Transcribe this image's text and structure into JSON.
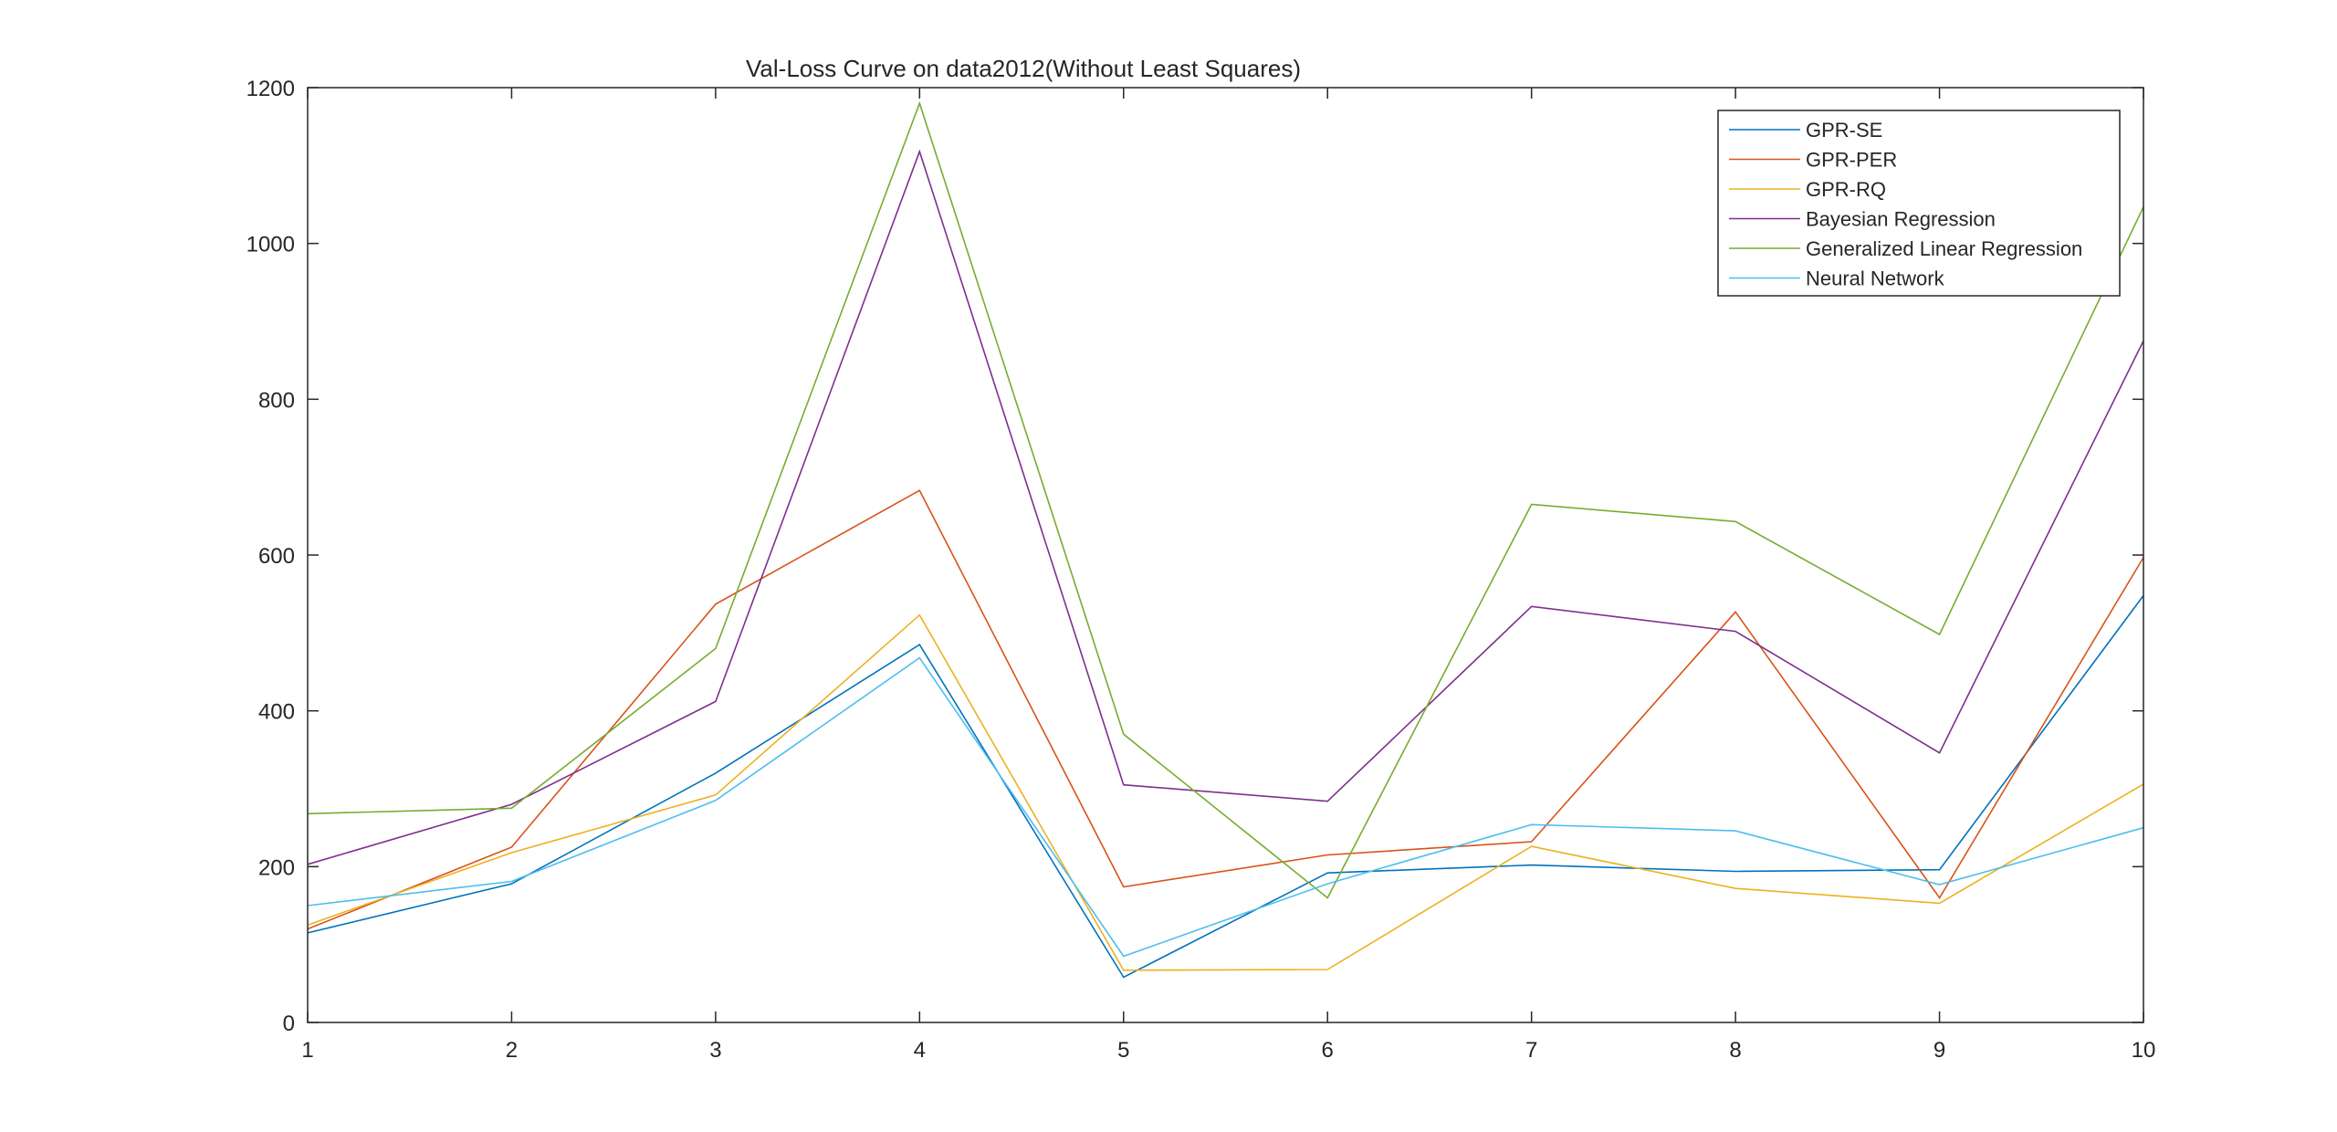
{
  "chart_data": {
    "type": "line",
    "title": "Val-Loss Curve on data2012(Without Least Squares)",
    "xlabel": "",
    "ylabel": "",
    "x": [
      1,
      2,
      3,
      4,
      5,
      6,
      7,
      8,
      9,
      10
    ],
    "xlim": [
      1,
      10
    ],
    "ylim": [
      0,
      1200
    ],
    "xticks": [
      1,
      2,
      3,
      4,
      5,
      6,
      7,
      8,
      9,
      10
    ],
    "yticks": [
      0,
      200,
      400,
      600,
      800,
      1000,
      1200
    ],
    "grid": false,
    "legend_position": "top-right",
    "series": [
      {
        "name": "GPR-SE",
        "color": "#0072BD",
        "values": [
          115,
          178,
          320,
          485,
          58,
          192,
          202,
          194,
          196,
          548
        ]
      },
      {
        "name": "GPR-PER",
        "color": "#D95319",
        "values": [
          120,
          225,
          537,
          683,
          174,
          215,
          232,
          527,
          160,
          597
        ]
      },
      {
        "name": "GPR-RQ",
        "color": "#EDB120",
        "values": [
          125,
          218,
          292,
          523,
          67,
          68,
          226,
          172,
          153,
          306
        ]
      },
      {
        "name": "Bayesian Regression",
        "color": "#7E2F8E",
        "values": [
          203,
          280,
          412,
          1118,
          305,
          284,
          534,
          502,
          346,
          875
        ]
      },
      {
        "name": "Generalized Linear Regression",
        "color": "#77AC30",
        "values": [
          268,
          275,
          480,
          1180,
          370,
          160,
          665,
          643,
          498,
          1047
        ]
      },
      {
        "name": "Neural Network",
        "color": "#4DBEEE",
        "values": [
          150,
          181,
          285,
          468,
          85,
          178,
          254,
          246,
          177,
          250
        ]
      }
    ]
  }
}
